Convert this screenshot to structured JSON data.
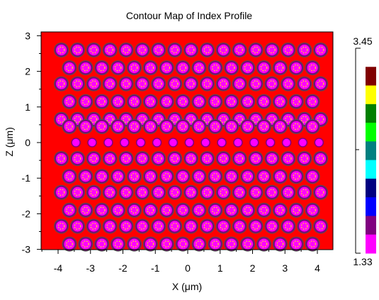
{
  "chart_data": {
    "type": "heatmap",
    "title": "Contour Map of Index Profile",
    "xlabel": "X (μm)",
    "ylabel": "Z (μm)",
    "xlim": [
      -4.4,
      4.5
    ],
    "ylim": [
      -3.05,
      3.05
    ],
    "x_ticks": [
      -4,
      -3,
      -2,
      -1,
      0,
      1,
      2,
      3,
      4
    ],
    "y_ticks": [
      -3,
      -2,
      -1,
      0,
      1,
      2,
      3
    ],
    "background_index": 3.45,
    "hole_index": 1.33,
    "lattice": {
      "pitch_x": 0.5,
      "row_pitch": 0.5,
      "rows": [
        {
          "z": 2.6,
          "x_start": -3.9,
          "count": 17
        },
        {
          "z": 2.1,
          "x_start": -3.65,
          "count": 16
        },
        {
          "z": 1.65,
          "x_start": -3.9,
          "count": 17
        },
        {
          "z": 1.15,
          "x_start": -3.65,
          "count": 16
        },
        {
          "z": 0.65,
          "x_start": -3.9,
          "count": 17
        },
        {
          "z": 0.45,
          "x_start": -3.65,
          "count": 16
        },
        {
          "z": 0.0,
          "x_start": -3.45,
          "count": 16,
          "type": "small"
        },
        {
          "z": -0.45,
          "x_start": -3.9,
          "count": 17
        },
        {
          "z": -0.95,
          "x_start": -3.65,
          "count": 16
        },
        {
          "z": -1.4,
          "x_start": -3.9,
          "count": 17
        },
        {
          "z": -1.9,
          "x_start": -3.65,
          "count": 16
        },
        {
          "z": -2.35,
          "x_start": -3.9,
          "count": 17
        },
        {
          "z": -2.85,
          "x_start": -3.65,
          "count": 16
        }
      ]
    },
    "colorbar": {
      "max_label": "3.45",
      "min_label": "1.33",
      "colors": [
        "#800000",
        "#ffff00",
        "#008000",
        "#00ff00",
        "#008080",
        "#00ffff",
        "#000080",
        "#0000ff",
        "#800080",
        "#ff00ff"
      ],
      "top_color": "#ffffff"
    },
    "colors": {
      "background": "#ff0000",
      "hole_outer": "#7f007f",
      "hole_inner": "#ff00ff",
      "hole_dots": "#ffff00",
      "hole_ring": "#000000"
    }
  }
}
